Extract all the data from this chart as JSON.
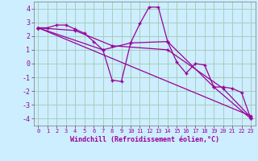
{
  "bg_color": "#cceeff",
  "line_color": "#990099",
  "grid_color": "#aaccbb",
  "xlabel": "Windchill (Refroidissement éolien,°C)",
  "xlim": [
    -0.5,
    23.5
  ],
  "ylim": [
    -4.5,
    4.5
  ],
  "yticks": [
    -4,
    -3,
    -2,
    -1,
    0,
    1,
    2,
    3,
    4
  ],
  "xticks": [
    0,
    1,
    2,
    3,
    4,
    5,
    6,
    7,
    8,
    9,
    10,
    11,
    12,
    13,
    14,
    15,
    16,
    17,
    18,
    19,
    20,
    21,
    22,
    23
  ],
  "lines": [
    {
      "x": [
        0,
        1,
        2,
        3,
        4,
        5,
        6,
        7,
        8,
        9,
        10,
        11,
        12,
        13,
        14,
        15,
        16,
        17,
        18,
        19,
        20,
        21,
        22,
        23
      ],
      "y": [
        2.6,
        2.6,
        2.8,
        2.8,
        2.5,
        2.2,
        1.6,
        1.0,
        -1.2,
        -1.3,
        1.5,
        2.9,
        4.1,
        4.1,
        1.6,
        0.1,
        -0.7,
        0.0,
        -0.1,
        -1.7,
        -1.7,
        -1.8,
        -2.1,
        -4.0
      ]
    },
    {
      "x": [
        0,
        7,
        10,
        14,
        19,
        23
      ],
      "y": [
        2.6,
        1.0,
        1.5,
        1.6,
        -1.7,
        -4.0
      ]
    },
    {
      "x": [
        0,
        4,
        8,
        14,
        20,
        23
      ],
      "y": [
        2.6,
        2.4,
        1.3,
        1.0,
        -1.8,
        -3.9
      ]
    },
    {
      "x": [
        0,
        23
      ],
      "y": [
        2.6,
        -3.8
      ]
    }
  ]
}
